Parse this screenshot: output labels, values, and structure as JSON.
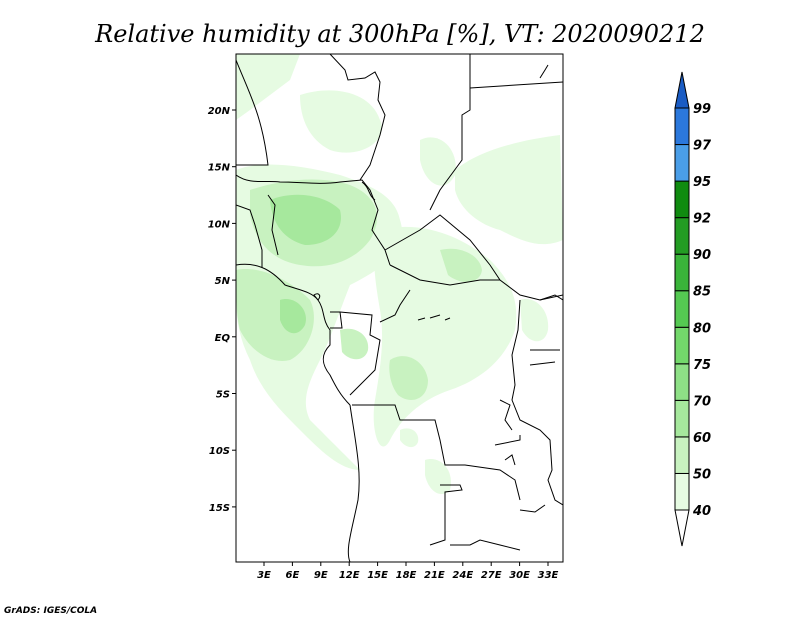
{
  "title": "Relative humidity at 300hPa [%], VT: 2020090212",
  "credit": "GrADS: IGES/COLA",
  "lat_labels": [
    "20N",
    "15N",
    "10N",
    "5N",
    "EQ",
    "5S",
    "10S",
    "15S"
  ],
  "lon_labels": [
    "3E",
    "6E",
    "9E",
    "12E",
    "15E",
    "18E",
    "21E",
    "24E",
    "27E",
    "30E",
    "33E"
  ],
  "colorbar": {
    "levels": [
      "40",
      "50",
      "60",
      "70",
      "75",
      "80",
      "85",
      "90",
      "92",
      "95",
      "97",
      "99"
    ],
    "colors": [
      "#ffffff",
      "#e6fbe2",
      "#c8f2c0",
      "#a6e89d",
      "#8ee086",
      "#73d86b",
      "#55c952",
      "#3ab43a",
      "#239c23",
      "#108b10",
      "#4a9ee8",
      "#2b78dc",
      "#1a5cc4"
    ]
  }
}
